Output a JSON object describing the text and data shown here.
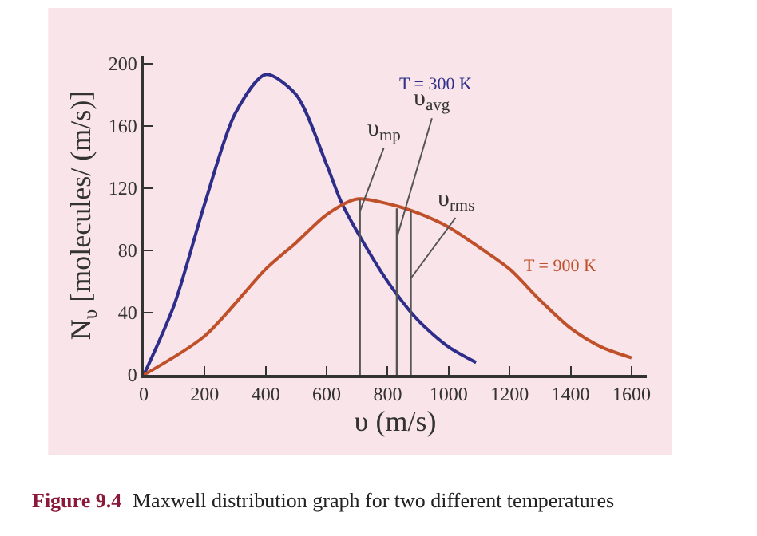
{
  "chart_data": {
    "type": "line",
    "xlabel": "υ (m/s)",
    "ylabel": "N$_{υ}$ [molecules/ (m/s)]",
    "xlim": [
      0,
      1650
    ],
    "xticks": [
      0,
      200,
      400,
      600,
      800,
      1000,
      1200,
      1400,
      1600
    ],
    "ylim": [
      0,
      205
    ],
    "yticks": [
      0,
      40,
      80,
      120,
      160,
      200
    ],
    "grid": false,
    "legend": false,
    "marker": "none",
    "line_style": "solid",
    "series": [
      {
        "name": "T = 300 K",
        "color": "#2e2e8a",
        "x": [
          0,
          100,
          200,
          300,
          400,
          500,
          600,
          648,
          700,
          800,
          900,
          1000,
          1090
        ],
        "values": [
          0,
          45,
          110,
          168,
          193,
          180,
          135,
          111,
          92,
          60,
          35,
          18,
          8
        ]
      },
      {
        "name": "T = 900 K",
        "color": "#c0502a",
        "x": [
          0,
          200,
          400,
          500,
          600,
          700,
          800,
          900,
          1000,
          1100,
          1200,
          1300,
          1400,
          1500,
          1600
        ],
        "values": [
          0,
          25,
          68,
          85,
          103,
          113,
          110,
          104,
          95,
          82,
          68,
          48,
          30,
          18,
          11
        ]
      },
      {
        "color": "#555555",
        "x": [
          709,
          709
        ],
        "values": [
          0,
          113
        ]
      },
      {
        "color": "#555555",
        "x": [
          830,
          830
        ],
        "values": [
          0,
          107
        ]
      },
      {
        "color": "#555555",
        "x": [
          876,
          876
        ],
        "values": [
          0,
          105
        ]
      }
    ],
    "annotations": [
      {
        "text": "υ$_{mp}$",
        "x": 709,
        "y": 105
      },
      {
        "text": "υ$_{avg}$",
        "x": 830,
        "y": 88
      },
      {
        "text": "υ$_{rms}$",
        "x": 876,
        "y": 62
      },
      "Figure 9.4",
      "Maxwell distribution graph for two different temperatures"
    ]
  }
}
